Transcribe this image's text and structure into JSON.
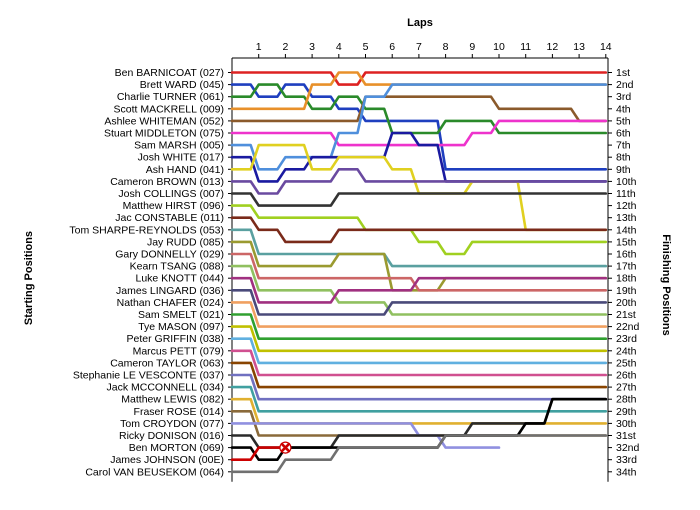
{
  "chart_data": {
    "type": "line",
    "title": "Laps",
    "ylabel_left": "Starting Positions",
    "ylabel_right": "Finishing Positions",
    "laps": [
      1,
      2,
      3,
      4,
      5,
      6,
      7,
      8,
      9,
      10,
      11,
      12,
      13,
      14
    ],
    "start_labels": [
      "Ben BARNICOAT (027)",
      "Brett WARD (045)",
      "Charlie TURNER (061)",
      "Scott MACKRELL (009)",
      "Ashlee WHITEMAN (052)",
      "Stuart MIDDLETON (075)",
      "Sam MARSH (005)",
      "Josh WHITE (017)",
      "Ash HAND (041)",
      "Cameron BROWN (013)",
      "Josh COLLINGS (007)",
      "Matthew HIRST (096)",
      "Jac CONSTABLE (011)",
      "Tom SHARPE-REYNOLDS (053)",
      "Jay RUDD (085)",
      "Gary DONNELLY (029)",
      "Kearn TSANG (088)",
      "Luke KNOTT (044)",
      "James LINGARD (036)",
      "Nathan CHAFER (024)",
      "Sam SMELT (021)",
      "Tye MASON (097)",
      "Peter GRIFFIN (038)",
      "Marcus PETT (079)",
      "Cameron TAYLOR (063)",
      "Stephanie LE VESCONTE (037)",
      "Jack MCCONNELL (034)",
      "Matthew LEWIS (082)",
      "Fraser ROSE (014)",
      "Tom CROYDON (077)",
      "Ricky DONISON (016)",
      "Ben MORTON (069)",
      "James JOHNSON (00E)",
      "Carol VAN BEUSEKOM (064)"
    ],
    "finish_labels": [
      "1st",
      "2nd",
      "3rd",
      "4th",
      "5th",
      "6th",
      "7th",
      "8th",
      "9th",
      "10th",
      "11th",
      "12th",
      "13th",
      "14th",
      "15th",
      "16th",
      "17th",
      "18th",
      "19th",
      "20th",
      "21st",
      "22nd",
      "23rd",
      "24th",
      "25th",
      "26th",
      "27th",
      "28th",
      "29th",
      "30th",
      "31st",
      "32nd",
      "33rd",
      "34th"
    ],
    "series": [
      {
        "start": 1,
        "color": "#dd2222",
        "positions": [
          1,
          1,
          1,
          2,
          1,
          1,
          1,
          1,
          1,
          1,
          1,
          1,
          1,
          1
        ]
      },
      {
        "start": 2,
        "color": "#1f3fbf",
        "positions": [
          3,
          2,
          3,
          4,
          5,
          5,
          5,
          9,
          9,
          9,
          9,
          9,
          9,
          9
        ]
      },
      {
        "start": 3,
        "color": "#2a8a2a",
        "positions": [
          2,
          3,
          4,
          3,
          4,
          6,
          6,
          5,
          5,
          6,
          6,
          6,
          6,
          6
        ]
      },
      {
        "start": 4,
        "color": "#e8902a",
        "positions": [
          4,
          4,
          2,
          1,
          2,
          2,
          2,
          2,
          2,
          2,
          2,
          2,
          2,
          2
        ]
      },
      {
        "start": 5,
        "color": "#8b5a2b",
        "positions": [
          5,
          5,
          5,
          5,
          3,
          3,
          3,
          3,
          3,
          4,
          4,
          4,
          5,
          5
        ]
      },
      {
        "start": 6,
        "color": "#ee33cc",
        "positions": [
          6,
          6,
          6,
          7,
          7,
          7,
          7,
          7,
          6,
          5,
          5,
          5,
          5,
          5
        ]
      },
      {
        "start": 7,
        "color": "#4f8fdc",
        "positions": [
          9,
          8,
          8,
          6,
          3,
          2,
          2,
          2,
          2,
          2,
          2,
          2,
          2,
          2
        ]
      },
      {
        "start": 8,
        "color": "#1a1aa0",
        "positions": [
          10,
          9,
          8,
          8,
          8,
          6,
          7,
          10,
          10,
          10,
          10,
          10,
          10,
          10
        ]
      },
      {
        "start": 9,
        "color": "#e0d020",
        "positions": [
          7,
          7,
          9,
          8,
          8,
          9,
          11,
          11,
          10,
          10,
          14,
          14,
          14,
          14
        ]
      },
      {
        "start": 10,
        "color": "#6a4aa0",
        "positions": [
          11,
          10,
          10,
          9,
          10,
          10,
          10,
          10,
          10,
          10,
          10,
          10,
          10,
          10
        ]
      },
      {
        "start": 11,
        "color": "#333333",
        "positions": [
          12,
          12,
          12,
          11,
          11,
          11,
          11,
          11,
          11,
          11,
          11,
          11,
          11,
          11
        ]
      },
      {
        "start": 12,
        "color": "#a0d020",
        "positions": [
          13,
          13,
          13,
          13,
          14,
          14,
          15,
          16,
          15,
          15,
          15,
          15,
          15,
          15
        ]
      },
      {
        "start": 13,
        "color": "#7a2a1a",
        "positions": [
          14,
          15,
          15,
          14,
          14,
          14,
          14,
          14,
          14,
          14,
          14,
          14,
          14,
          14
        ]
      },
      {
        "start": 14,
        "color": "#5aa0a0",
        "positions": [
          16,
          16,
          16,
          16,
          16,
          17,
          17,
          17,
          17,
          17,
          17,
          17,
          17,
          17
        ]
      },
      {
        "start": 15,
        "color": "#9a9a30",
        "positions": [
          17,
          17,
          17,
          16,
          16,
          19,
          19,
          18,
          18,
          18,
          18,
          18,
          18,
          18
        ]
      },
      {
        "start": 16,
        "color": "#cc6666",
        "positions": [
          18,
          18,
          18,
          18,
          18,
          18,
          19,
          19,
          19,
          19,
          19,
          19,
          19,
          19
        ]
      },
      {
        "start": 17,
        "color": "#90c060",
        "positions": [
          19,
          19,
          19,
          20,
          20,
          21,
          21,
          21,
          21,
          21,
          21,
          21,
          21,
          21
        ]
      },
      {
        "start": 18,
        "color": "#a03080",
        "positions": [
          20,
          20,
          20,
          19,
          19,
          19,
          18,
          18,
          18,
          18,
          18,
          18,
          18,
          18
        ]
      },
      {
        "start": 19,
        "color": "#4a4a7a",
        "positions": [
          21,
          21,
          21,
          21,
          21,
          20,
          20,
          20,
          20,
          20,
          20,
          20,
          20,
          20
        ]
      },
      {
        "start": 20,
        "color": "#f0a060",
        "positions": [
          22,
          22,
          22,
          22,
          22,
          22,
          22,
          22,
          22,
          22,
          22,
          22,
          22,
          22
        ]
      },
      {
        "start": 21,
        "color": "#30a030",
        "positions": [
          23,
          23,
          23,
          23,
          23,
          23,
          23,
          23,
          23,
          23,
          23,
          23,
          23,
          23
        ]
      },
      {
        "start": 22,
        "color": "#c0c000",
        "positions": [
          24,
          24,
          24,
          24,
          24,
          24,
          24,
          24,
          24,
          24,
          24,
          24,
          24,
          24
        ]
      },
      {
        "start": 23,
        "color": "#60b0e0",
        "positions": [
          25,
          25,
          25,
          25,
          25,
          25,
          25,
          25,
          25,
          25,
          25,
          25,
          25,
          25
        ]
      },
      {
        "start": 24,
        "color": "#d05090",
        "positions": [
          26,
          26,
          26,
          26,
          26,
          26,
          26,
          26,
          26,
          26,
          26,
          26,
          26,
          26
        ]
      },
      {
        "start": 25,
        "color": "#884400",
        "positions": [
          27,
          27,
          27,
          27,
          27,
          27,
          27,
          27,
          27,
          27,
          27,
          27,
          27,
          27
        ]
      },
      {
        "start": 26,
        "color": "#7070c0",
        "positions": [
          28,
          28,
          28,
          28,
          28,
          28,
          28,
          28,
          28,
          28,
          28,
          28,
          28,
          28
        ]
      },
      {
        "start": 27,
        "color": "#40a0a0",
        "positions": [
          29,
          29,
          29,
          29,
          29,
          29,
          29,
          29,
          29,
          29,
          29,
          29,
          29,
          29
        ]
      },
      {
        "start": 28,
        "color": "#e0b030",
        "positions": [
          30,
          30,
          30,
          30,
          30,
          30,
          30,
          30,
          30,
          30,
          30,
          30,
          30,
          30
        ]
      },
      {
        "start": 29,
        "color": "#8a6a3a",
        "positions": [
          31,
          31,
          31,
          31,
          31,
          31,
          31,
          31,
          31,
          31,
          31,
          31,
          31,
          31
        ]
      },
      {
        "start": 30,
        "color": "#9090e0",
        "positions": [
          30,
          30,
          30,
          30,
          30,
          30,
          31,
          32,
          32,
          32,
          null,
          null,
          null,
          null
        ]
      },
      {
        "start": 31,
        "color": "#2a2a2a",
        "positions": [
          32,
          32,
          32,
          31,
          31,
          31,
          31,
          31,
          30,
          30,
          30,
          28,
          28,
          28
        ]
      },
      {
        "start": 32,
        "color": "#000000",
        "positions": [
          33,
          32,
          32,
          32,
          32,
          32,
          32,
          31,
          31,
          31,
          30,
          28,
          28,
          28
        ]
      },
      {
        "start": 33,
        "color": "#cc0000",
        "positions": [
          32,
          32,
          null,
          null,
          null,
          null,
          null,
          null,
          null,
          null,
          null,
          null,
          null,
          null
        ],
        "retired": true
      },
      {
        "start": 34,
        "color": "#707070",
        "positions": [
          34,
          33,
          33,
          32,
          32,
          32,
          32,
          31,
          31,
          31,
          31,
          31,
          31,
          31
        ]
      }
    ]
  }
}
